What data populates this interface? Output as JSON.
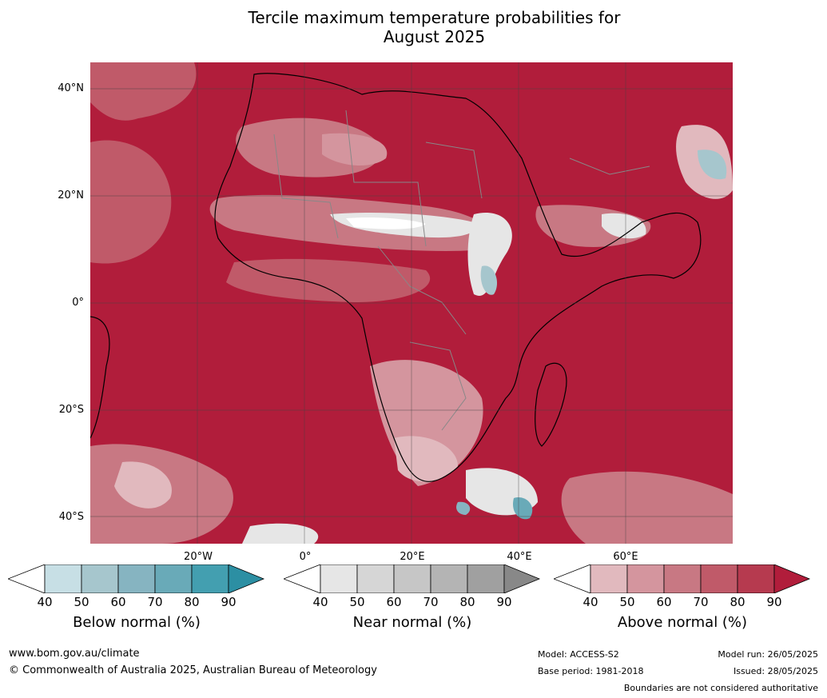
{
  "title_line1": "Tercile maximum temperature probabilities for",
  "title_line2": "August 2025",
  "lat_labels": [
    "40°N",
    "20°N",
    "0°",
    "20°S",
    "40°S"
  ],
  "lon_labels": [
    "20°W",
    "0°",
    "20°E",
    "40°E",
    "60°E"
  ],
  "colorbars": [
    {
      "label": "Below normal (%)",
      "ticks": [
        "40",
        "50",
        "60",
        "70",
        "80",
        "90"
      ],
      "colors": [
        "#ffffff",
        "#c7dfe5",
        "#a6c6cd",
        "#86b4c1",
        "#69aab8",
        "#439fb0",
        "#2c8fa3"
      ]
    },
    {
      "label": "Near normal (%)",
      "ticks": [
        "40",
        "50",
        "60",
        "70",
        "80",
        "90"
      ],
      "colors": [
        "#ffffff",
        "#e6e6e6",
        "#d6d6d6",
        "#c6c6c6",
        "#b4b4b4",
        "#a0a0a0",
        "#888888"
      ]
    },
    {
      "label": "Above normal (%)",
      "ticks": [
        "40",
        "50",
        "60",
        "70",
        "80",
        "90"
      ],
      "colors": [
        "#ffffff",
        "#e1b9be",
        "#d4959e",
        "#c87883",
        "#c05a69",
        "#b63a4f",
        "#b11d3b"
      ]
    }
  ],
  "footer": {
    "website": "www.bom.gov.au/climate",
    "copyright": "© Commonwealth of Australia 2025, Australian Bureau of Meteorology",
    "model": "Model: ACCESS-S2",
    "base_period": "Base period: 1981-2018",
    "model_run": "Model run: 26/05/2025",
    "issued": "Issued: 28/05/2025",
    "disclaimer": "Boundaries are not considered authoritative"
  }
}
